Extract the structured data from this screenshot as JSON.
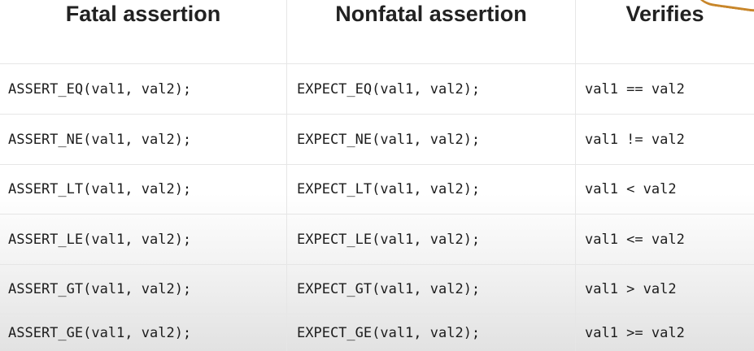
{
  "table": {
    "headers": [
      "Fatal assertion",
      "Nonfatal assertion",
      "Verifies"
    ],
    "rows": [
      [
        "ASSERT_EQ(val1, val2);",
        "EXPECT_EQ(val1, val2);",
        "val1 == val2"
      ],
      [
        "ASSERT_NE(val1, val2);",
        "EXPECT_NE(val1, val2);",
        "val1 != val2"
      ],
      [
        "ASSERT_LT(val1, val2);",
        "EXPECT_LT(val1, val2);",
        "val1 < val2"
      ],
      [
        "ASSERT_LE(val1, val2);",
        "EXPECT_LE(val1, val2);",
        "val1 <= val2"
      ],
      [
        "ASSERT_GT(val1, val2);",
        "EXPECT_GT(val1, val2);",
        "val1 > val2"
      ],
      [
        "ASSERT_GE(val1, val2);",
        "EXPECT_GE(val1, val2);",
        "val1 >= val2"
      ]
    ]
  },
  "colors": {
    "text": "#222222",
    "grid": "#e6e6e6",
    "accent": "#c8862a"
  }
}
